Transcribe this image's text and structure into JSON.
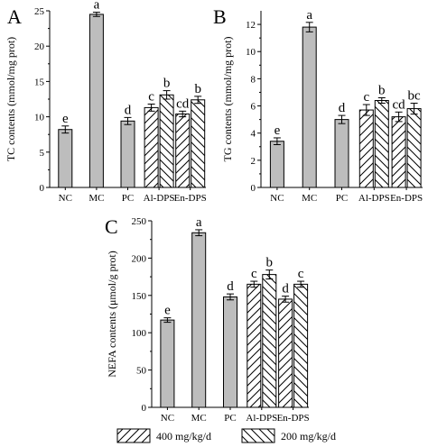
{
  "chart_data": [
    {
      "type": "bar",
      "panel": "A",
      "ylabel": "TC contents (mmol/mg prot)",
      "ylim": [
        0,
        25
      ],
      "yticks": [
        0,
        5,
        10,
        15,
        20,
        25
      ],
      "categories": [
        "NC",
        "MC",
        "PC",
        "Al-DPS",
        "En-DPS"
      ],
      "bars": [
        {
          "category": "NC",
          "series": "single",
          "value": 8.2,
          "error": 0.5,
          "label": "e"
        },
        {
          "category": "MC",
          "series": "single",
          "value": 24.5,
          "error": 0.3,
          "label": "a"
        },
        {
          "category": "PC",
          "series": "single",
          "value": 9.4,
          "error": 0.5,
          "label": "d"
        },
        {
          "category": "Al-DPS",
          "series": "400 mg/kg/d",
          "value": 11.3,
          "error": 0.5,
          "label": "c"
        },
        {
          "category": "Al-DPS",
          "series": "200 mg/kg/d",
          "value": 13.1,
          "error": 0.6,
          "label": "b"
        },
        {
          "category": "En-DPS",
          "series": "400 mg/kg/d",
          "value": 10.4,
          "error": 0.4,
          "label": "cd"
        },
        {
          "category": "En-DPS",
          "series": "200 mg/kg/d",
          "value": 12.4,
          "error": 0.5,
          "label": "b"
        }
      ]
    },
    {
      "type": "bar",
      "panel": "B",
      "ylabel": "TG contents (mmol/mg prot)",
      "ylim": [
        0,
        13
      ],
      "yticks": [
        0,
        2,
        4,
        6,
        8,
        10,
        12
      ],
      "categories": [
        "NC",
        "MC",
        "PC",
        "Al-DPS",
        "En-DPS"
      ],
      "bars": [
        {
          "category": "NC",
          "series": "single",
          "value": 3.4,
          "error": 0.25,
          "label": "e"
        },
        {
          "category": "MC",
          "series": "single",
          "value": 11.8,
          "error": 0.35,
          "label": "a"
        },
        {
          "category": "PC",
          "series": "single",
          "value": 5.0,
          "error": 0.3,
          "label": "d"
        },
        {
          "category": "Al-DPS",
          "series": "400 mg/kg/d",
          "value": 5.7,
          "error": 0.4,
          "label": "c"
        },
        {
          "category": "Al-DPS",
          "series": "200 mg/kg/d",
          "value": 6.4,
          "error": 0.2,
          "label": "b"
        },
        {
          "category": "En-DPS",
          "series": "400 mg/kg/d",
          "value": 5.2,
          "error": 0.35,
          "label": "cd"
        },
        {
          "category": "En-DPS",
          "series": "200 mg/kg/d",
          "value": 5.8,
          "error": 0.4,
          "label": "bc"
        }
      ]
    },
    {
      "type": "bar",
      "panel": "C",
      "ylabel": "NEFA contents (μmol/g prot)",
      "ylim": [
        0,
        250
      ],
      "yticks": [
        0,
        50,
        100,
        150,
        200,
        250
      ],
      "categories": [
        "NC",
        "MC",
        "PC",
        "Al-DPS",
        "En-DPS"
      ],
      "bars": [
        {
          "category": "NC",
          "series": "single",
          "value": 117,
          "error": 3,
          "label": "e"
        },
        {
          "category": "MC",
          "series": "single",
          "value": 234,
          "error": 4,
          "label": "a"
        },
        {
          "category": "PC",
          "series": "single",
          "value": 148,
          "error": 4,
          "label": "d"
        },
        {
          "category": "Al-DPS",
          "series": "400 mg/kg/d",
          "value": 165,
          "error": 4,
          "label": "c"
        },
        {
          "category": "Al-DPS",
          "series": "200 mg/kg/d",
          "value": 178,
          "error": 6,
          "label": "b"
        },
        {
          "category": "En-DPS",
          "series": "400 mg/kg/d",
          "value": 145,
          "error": 4,
          "label": "d"
        },
        {
          "category": "En-DPS",
          "series": "200 mg/kg/d",
          "value": 165,
          "error": 4,
          "label": "c"
        }
      ]
    }
  ],
  "legend": {
    "placement": "bottom",
    "items": [
      {
        "label": "400 mg/kg/d",
        "pattern": "hatch-forward"
      },
      {
        "label": "200 mg/kg/d",
        "pattern": "hatch-backward"
      }
    ]
  },
  "colors": {
    "solid_bar": "#bdbdbd",
    "hatch_bar_fill": "#ffffff",
    "ink": "#000000"
  }
}
